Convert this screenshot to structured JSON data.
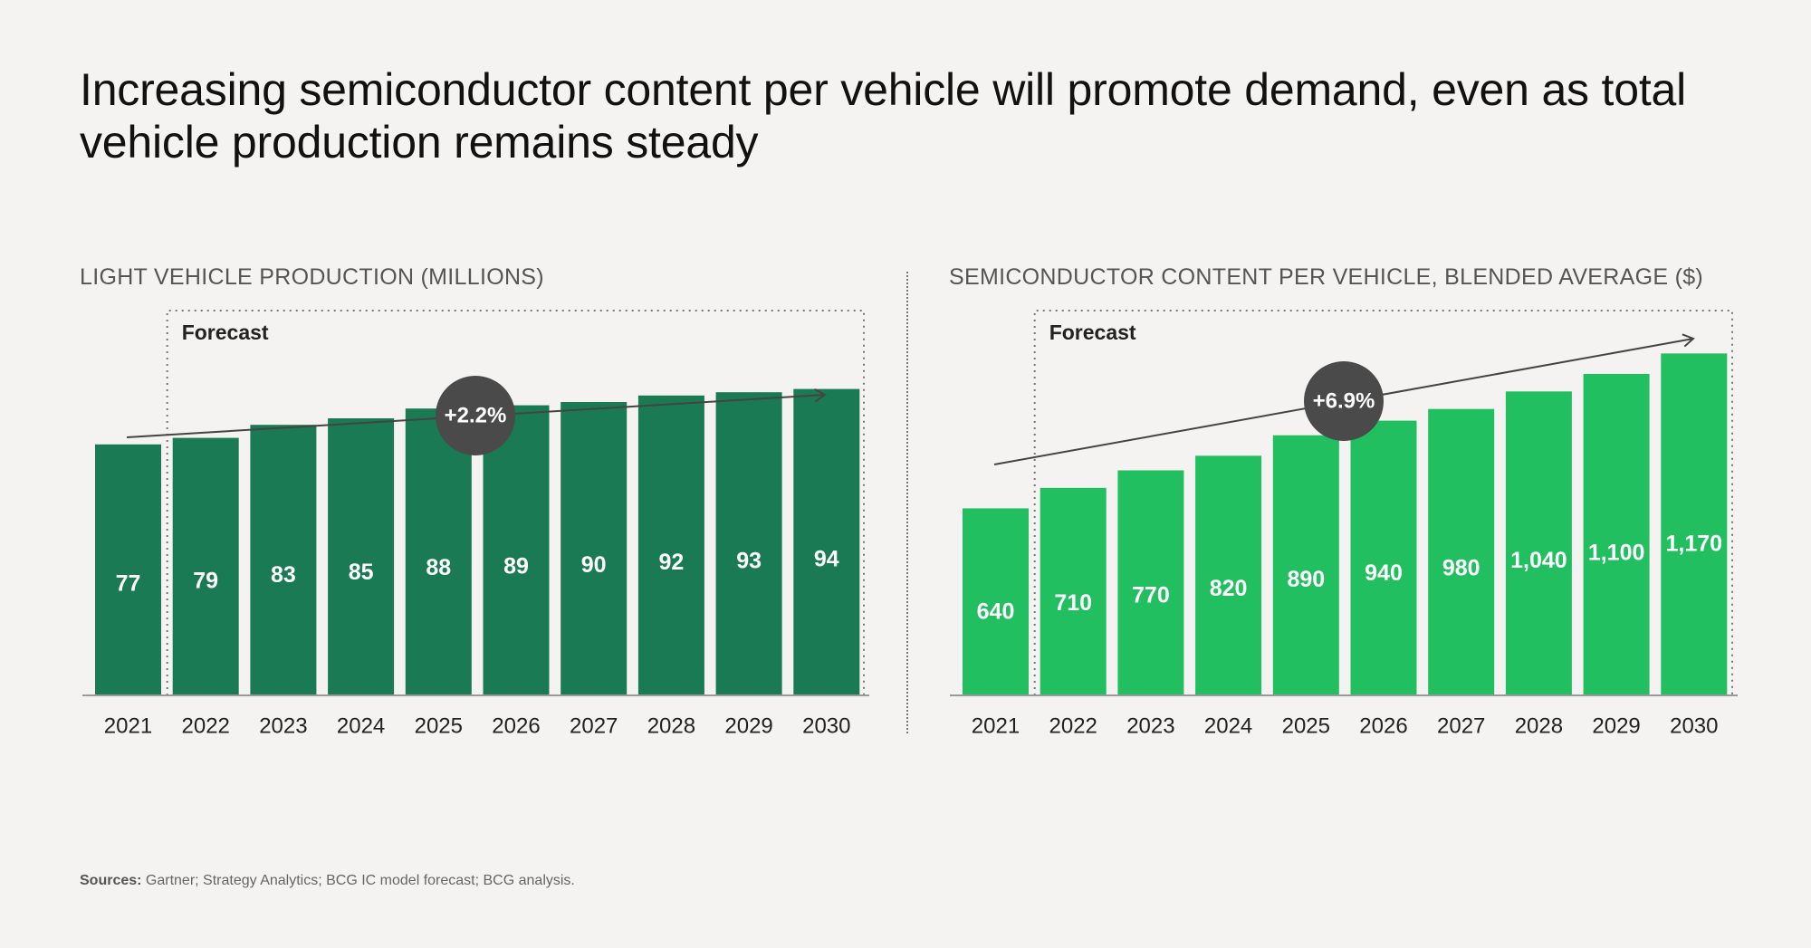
{
  "headline": "Increasing semiconductor content per vehicle will promote demand, even as total vehicle production remains steady",
  "chart_data": [
    {
      "type": "bar",
      "title": "LIGHT VEHICLE PRODUCTION (MILLIONS)",
      "categories": [
        "2021",
        "2022",
        "2023",
        "2024",
        "2025",
        "2026",
        "2027",
        "2028",
        "2029",
        "2030"
      ],
      "values": [
        77,
        79,
        83,
        85,
        88,
        89,
        90,
        92,
        93,
        94
      ],
      "value_labels": [
        "77",
        "79",
        "83",
        "85",
        "88",
        "89",
        "90",
        "92",
        "93",
        "94"
      ],
      "forecast_label": "Forecast",
      "forecast_start": "2022",
      "cagr_label": "+2.2%",
      "bar_color": "#1a7a54",
      "ylim": [
        0,
        130
      ]
    },
    {
      "type": "bar",
      "title": "SEMICONDUCTOR CONTENT PER VEHICLE, BLENDED AVERAGE ($)",
      "categories": [
        "2021",
        "2022",
        "2023",
        "2024",
        "2025",
        "2026",
        "2027",
        "2028",
        "2029",
        "2030"
      ],
      "values": [
        640,
        710,
        770,
        820,
        890,
        940,
        980,
        1040,
        1100,
        1170
      ],
      "value_labels": [
        "640",
        "710",
        "770",
        "820",
        "890",
        "940",
        "980",
        "1,040",
        "1,100",
        "1,170"
      ],
      "forecast_label": "Forecast",
      "forecast_start": "2022",
      "cagr_label": "+6.9%",
      "bar_color": "#21bf60",
      "ylim": [
        0,
        1450
      ]
    }
  ],
  "sources": {
    "label": "Sources:",
    "text": " Gartner; Strategy Analytics; BCG IC model forecast; BCG analysis."
  },
  "colors": {
    "background": "#f4f3f1",
    "badge": "#4a4a4a",
    "axis": "#888888"
  }
}
